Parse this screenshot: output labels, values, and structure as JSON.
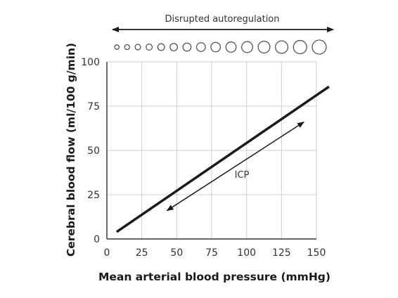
{
  "chart_data": {
    "type": "line",
    "title": "",
    "xlabel": "Mean arterial blood pressure (mmHg)",
    "ylabel": "Cerebral blood flow (ml/100 g/min)",
    "xlim": [
      0,
      150
    ],
    "ylim": [
      0,
      100
    ],
    "xticks": [
      0,
      25,
      50,
      75,
      100,
      125,
      150
    ],
    "yticks": [
      0,
      25,
      50,
      75,
      100
    ],
    "grid": true,
    "series": [
      {
        "x": [
          7,
          159
        ],
        "y": [
          4,
          86
        ]
      }
    ],
    "annotations": {
      "top_arrow_label": "Disrupted autoregulation",
      "icp_arrow_label": "ICP",
      "icp_arrow": {
        "x": [
          43,
          141
        ],
        "y": [
          16,
          66
        ]
      }
    },
    "vessel_circles": 15
  },
  "colors": {
    "line": "#1a1a1a",
    "grid": "#cfcfcf",
    "axis": "#333333",
    "circle": "#555555"
  }
}
